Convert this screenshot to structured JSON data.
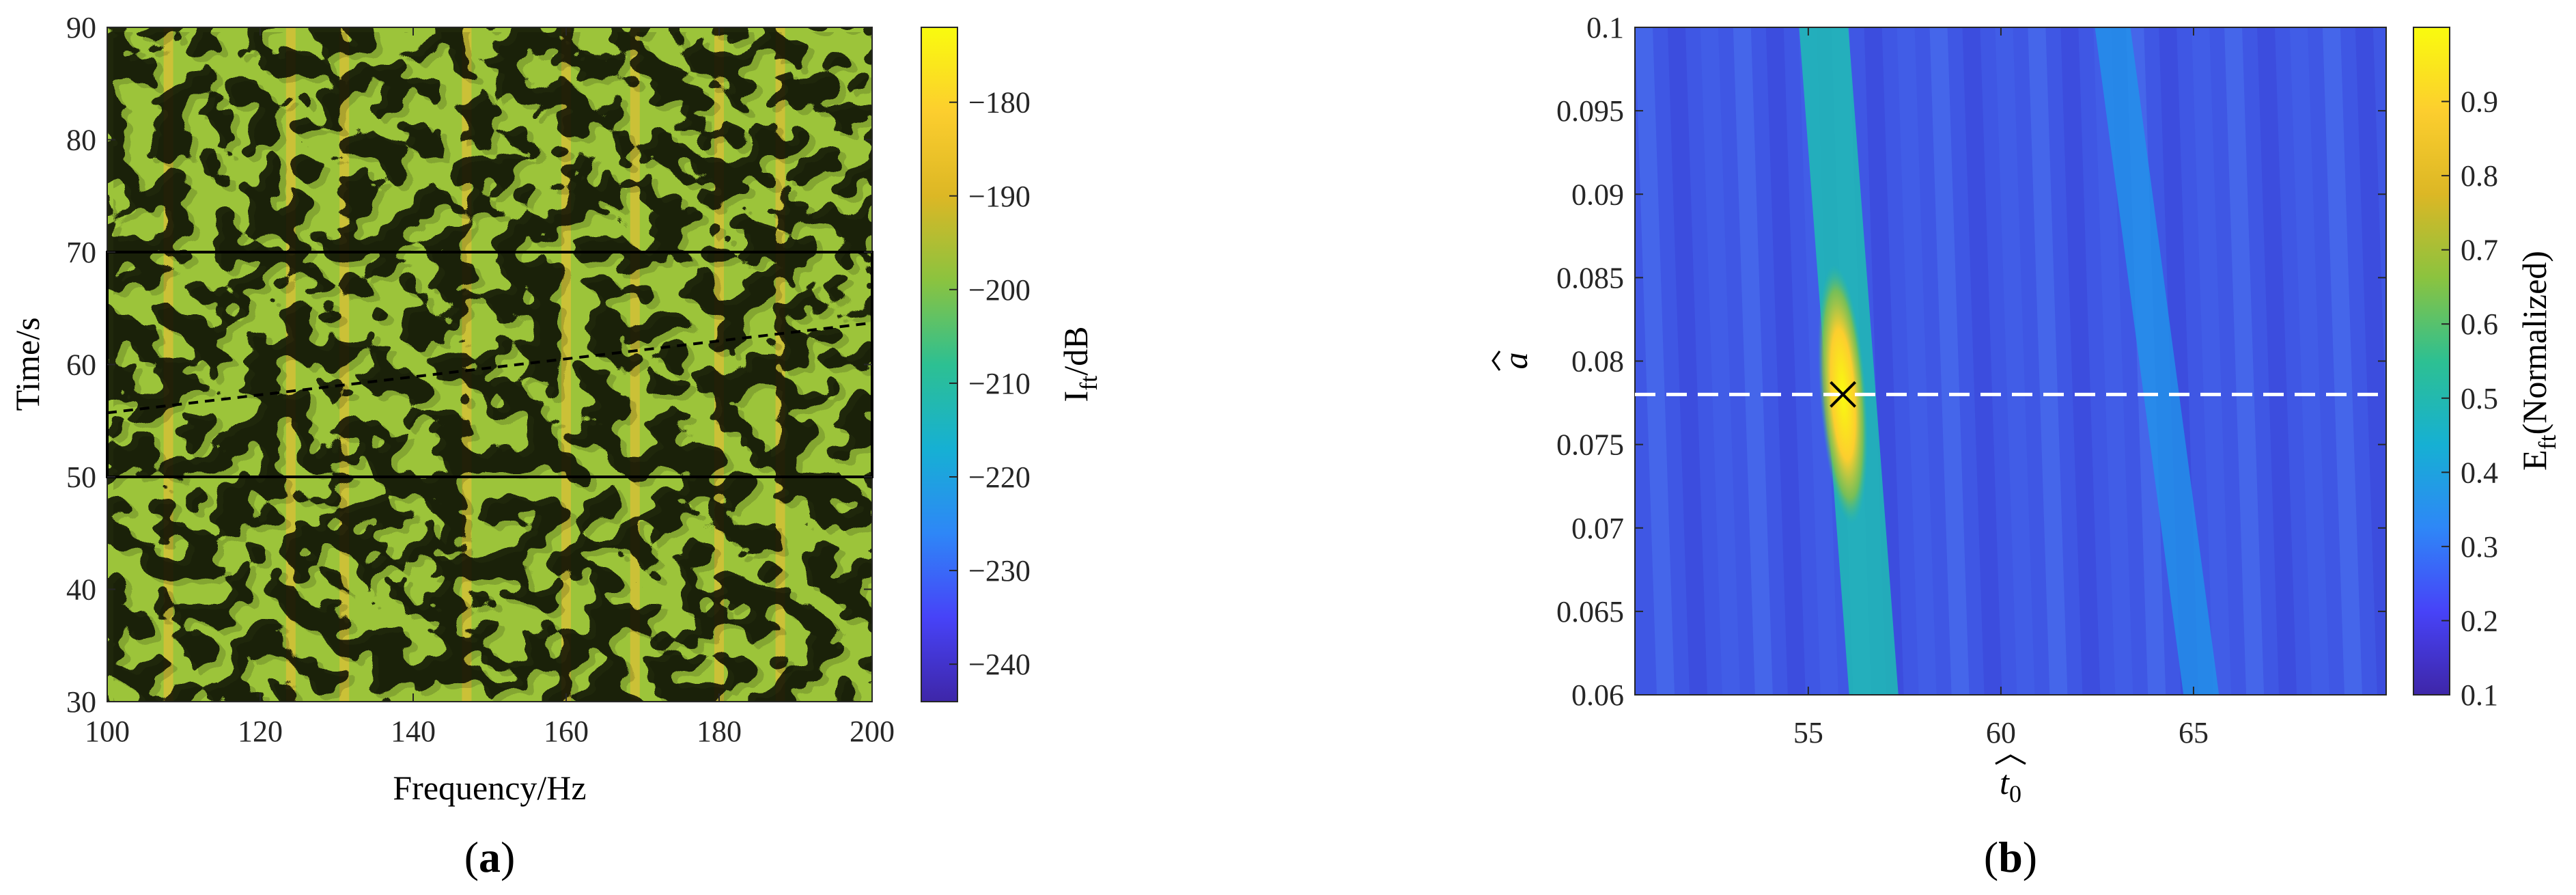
{
  "chart_data": [
    {
      "type": "heatmap",
      "panel_label": "(a)",
      "xlabel": "Frequency/Hz",
      "ylabel": "Time/s",
      "xlim": [
        100,
        200
      ],
      "ylim": [
        30,
        90
      ],
      "xticks": [
        "100",
        "120",
        "140",
        "160",
        "180",
        "200"
      ],
      "yticks": [
        "30",
        "40",
        "50",
        "60",
        "70",
        "80",
        "90"
      ],
      "colorbar": {
        "label": "I",
        "label_subscript": "ft",
        "label_suffix": "/dB",
        "range": [
          -244,
          -172
        ],
        "ticks": [
          "−180",
          "−190",
          "−200",
          "−210",
          "−220",
          "−230",
          "−240"
        ],
        "tick_values": [
          -180,
          -190,
          -200,
          -210,
          -220,
          -230,
          -240
        ]
      },
      "annotations": {
        "rectangle": {
          "x": [
            100,
            200
          ],
          "y": [
            50,
            70
          ]
        },
        "dashed_line": {
          "x": [
            100,
            200
          ],
          "y": [
            55.7,
            63.7
          ]
        }
      },
      "features": {
        "bright_vertical_lines_hz": [
          108,
          124,
          131,
          147,
          160,
          169,
          180,
          188
        ],
        "background_level_db": -200
      }
    },
    {
      "type": "heatmap",
      "panel_label": "(b)",
      "xlabel": "t",
      "xlabel_subscript": "0",
      "ylabel": "a",
      "xlim": [
        50.5,
        70
      ],
      "ylim": [
        0.06,
        0.1
      ],
      "xticks": [
        "55",
        "60",
        "65"
      ],
      "xtick_values": [
        55,
        60,
        65
      ],
      "yticks": [
        "0.06",
        "0.065",
        "0.07",
        "0.075",
        "0.08",
        "0.085",
        "0.09",
        "0.095",
        "0.1"
      ],
      "colorbar": {
        "label": "E",
        "label_subscript": "ft",
        "label_suffix": "(Normalized)",
        "range": [
          0.1,
          1.0
        ],
        "ticks": [
          "0.1",
          "0.2",
          "0.3",
          "0.4",
          "0.5",
          "0.6",
          "0.7",
          "0.8",
          "0.9"
        ],
        "tick_values": [
          0.1,
          0.2,
          0.3,
          0.4,
          0.5,
          0.6,
          0.7,
          0.8,
          0.9
        ]
      },
      "peak": {
        "t0": 55.9,
        "a": 0.078,
        "value": 1.0,
        "marker": "x"
      },
      "dashed_line": {
        "a": 0.078
      },
      "ridges": [
        {
          "t0_at_top": 55.4,
          "t0_at_bottom": 56.7,
          "value": 0.55
        },
        {
          "t0_at_top": 62.9,
          "t0_at_bottom": 65.2,
          "value": 0.4
        }
      ]
    }
  ],
  "colors": {
    "parula": [
      "#3e26a8",
      "#4743f8",
      "#2e87f7",
      "#16b0d3",
      "#2dc092",
      "#8bc33f",
      "#dcb725",
      "#fcce2e",
      "#f9fb0e"
    ]
  }
}
